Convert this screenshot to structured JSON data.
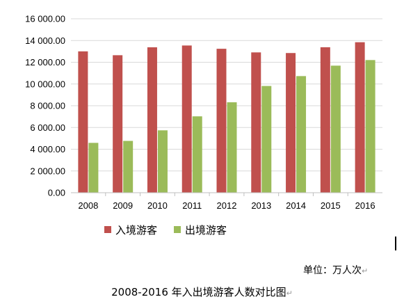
{
  "chart_data": {
    "type": "bar",
    "categories": [
      "2008",
      "2009",
      "2010",
      "2011",
      "2012",
      "2013",
      "2014",
      "2015",
      "2016"
    ],
    "series": [
      {
        "name": "入境游客",
        "color": "#c0504d",
        "values": [
          13003,
          12648,
          13376,
          13542,
          13241,
          12908,
          12849,
          13382,
          13844
        ]
      },
      {
        "name": "出境游客",
        "color": "#9bbb59",
        "values": [
          4584,
          4766,
          5739,
          7025,
          8318,
          9819,
          10728,
          11689,
          12203
        ]
      }
    ],
    "yticks": [
      "0.00",
      "2 000.00",
      "4 000.00",
      "6 000.00",
      "8 000.00",
      "10 000.00",
      "12 000.00",
      "14 000.00",
      "16 000.00"
    ],
    "ylim": [
      0,
      16000
    ],
    "grid": true,
    "legend_position": "bottom-left"
  },
  "unit_label": "单位：万人次",
  "caption": "2008-2016 年入出境游客人数对比图",
  "return_mark": "↵"
}
